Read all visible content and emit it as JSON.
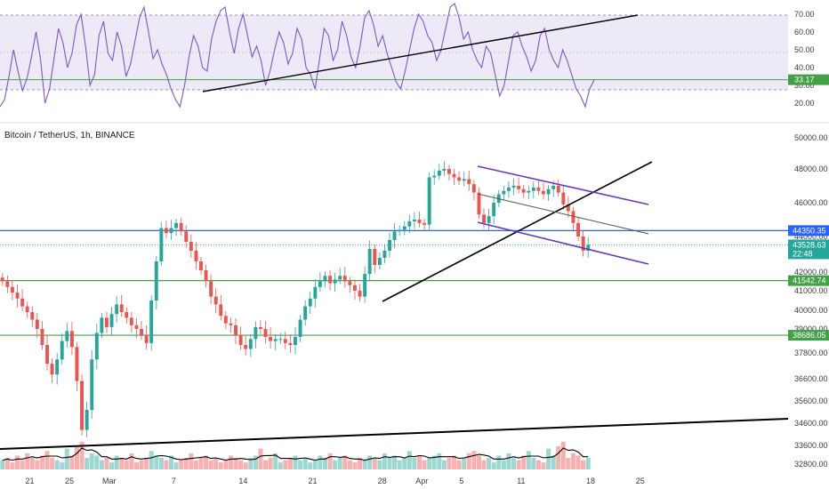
{
  "symbol_title": "Bitcoin / TetherUS, 1h, BINANCE",
  "chart_data": [
    {
      "type": "line",
      "panel": "rsi",
      "grid": false,
      "ylim": [
        10,
        78
      ],
      "y_ticks": [
        "70.00",
        "60.00",
        "50.00",
        "40.00",
        "30.00",
        "20.00"
      ],
      "band": [
        30,
        70
      ],
      "current_label": "33.17",
      "current_value": 33.17,
      "series": [
        {
          "x": [
            0,
            1,
            2,
            3,
            4,
            5,
            6,
            7,
            8,
            9,
            10,
            11,
            12,
            13,
            14,
            15,
            16,
            17,
            18,
            19,
            20,
            21,
            22,
            23,
            24,
            25,
            26,
            27,
            28,
            29,
            30,
            31,
            32,
            33,
            34,
            35,
            36,
            37,
            38,
            39,
            40,
            41,
            42,
            43,
            44,
            45,
            46,
            47,
            48,
            49,
            50,
            51,
            52,
            53,
            54,
            55,
            56,
            57,
            58,
            59,
            60,
            61,
            62,
            63,
            64,
            65,
            66,
            67,
            68,
            69,
            70,
            71,
            72,
            73,
            74,
            75,
            76,
            77,
            78,
            79,
            80,
            81,
            82,
            83,
            84,
            85,
            86,
            87,
            88,
            89,
            90,
            91,
            92,
            93,
            94,
            95,
            96,
            97,
            98,
            99,
            100,
            101,
            102,
            103,
            104,
            105,
            106,
            107,
            108,
            109,
            110,
            111,
            112,
            113,
            114,
            115,
            116,
            117,
            118,
            119,
            120,
            121,
            122,
            123,
            124,
            125,
            126,
            127,
            128,
            129,
            130,
            131,
            132
          ],
          "values": [
            18,
            22,
            35,
            50,
            38,
            27,
            34,
            46,
            60,
            45,
            20,
            28,
            45,
            62,
            54,
            40,
            48,
            64,
            70,
            52,
            30,
            36,
            58,
            66,
            48,
            44,
            60,
            52,
            35,
            42,
            55,
            68,
            74,
            60,
            45,
            50,
            42,
            36,
            28,
            22,
            18,
            30,
            46,
            58,
            52,
            40,
            38,
            56,
            66,
            72,
            74,
            60,
            48,
            62,
            70,
            58,
            46,
            52,
            44,
            30,
            38,
            50,
            60,
            54,
            42,
            48,
            62,
            56,
            40,
            36,
            28,
            45,
            62,
            58,
            44,
            50,
            66,
            58,
            46,
            40,
            52,
            68,
            72,
            64,
            52,
            58,
            48,
            40,
            32,
            28,
            38,
            50,
            62,
            70,
            66,
            58,
            54,
            44,
            50,
            62,
            74,
            76,
            68,
            56,
            60,
            50,
            44,
            40,
            52,
            48,
            36,
            24,
            30,
            44,
            58,
            60,
            52,
            46,
            38,
            44,
            58,
            62,
            50,
            44,
            40,
            50,
            44,
            36,
            28,
            24,
            18,
            28,
            33
          ]
        }
      ]
    },
    {
      "type": "candlestick",
      "panel": "price",
      "grid": false,
      "ylim": [
        32500,
        50600
      ],
      "y_ticks": [
        "50000.00",
        "48000.00",
        "46000.00",
        "44000.00",
        "42000.00",
        "41000.00",
        "40000.00",
        "39000.00",
        "37800.00",
        "36600.00",
        "35600.00",
        "34600.00",
        "33600.00",
        "32800.00"
      ],
      "x_tick_labels": [
        "21",
        "25",
        "Mar",
        "7",
        "14",
        "21",
        "28",
        "Apr",
        "5",
        "11",
        "18",
        "25"
      ],
      "x_tick_bars": [
        6,
        14,
        22,
        35,
        49,
        63,
        77,
        85,
        93,
        105,
        119,
        129
      ],
      "price_labels": [
        {
          "text": "44350.35",
          "value": 44350.35,
          "color": "#2962ff"
        },
        {
          "text": "43528.63",
          "value": 43528.63,
          "color": "#26a69a",
          "sub": "22:48"
        },
        {
          "text": "41542.74",
          "value": 41542.74,
          "color": "#43a047"
        },
        {
          "text": "38686.05",
          "value": 38686.05,
          "color": "#43a047"
        }
      ],
      "horizontal_lines": [
        {
          "value": 44350.35,
          "color": "#2962ff"
        },
        {
          "value": 41542.74,
          "color": "#43a047"
        },
        {
          "value": 38686.05,
          "color": "#43a047"
        }
      ],
      "last_price": 43528.63,
      "bars_shown": 97,
      "closes": [
        41500,
        41200,
        40900,
        40600,
        40200,
        39900,
        39500,
        39000,
        38200,
        37300,
        36800,
        37500,
        38400,
        38900,
        38100,
        36500,
        34300,
        35200,
        37500,
        38800,
        39600,
        39100,
        39800,
        40300,
        39900,
        39600,
        39200,
        39000,
        38700,
        38300,
        40500,
        42600,
        44500,
        44200,
        44500,
        44800,
        44300,
        43700,
        43200,
        42600,
        42100,
        41500,
        40700,
        40300,
        39700,
        39300,
        39200,
        38700,
        38200,
        38000,
        38500,
        39100,
        39000,
        38600,
        38400,
        38500,
        38500,
        38300,
        38200,
        38600,
        39500,
        40200,
        40600,
        41200,
        41500,
        41800,
        41400,
        41600,
        41800,
        41500,
        41300,
        41000,
        40700,
        41900,
        43300,
        42400,
        42800,
        43200,
        43800,
        44300,
        44400,
        44600,
        44900,
        45000,
        44800,
        44700,
        47500,
        47600,
        47900,
        48000,
        47700,
        47500,
        47300,
        47400,
        47100,
        46600,
        45300
      ],
      "tail_closes": [
        44800,
        45200,
        46000,
        46500,
        46700,
        46900,
        47000,
        46800,
        46600,
        46700,
        46900,
        46700,
        46500,
        46800,
        47000,
        46600,
        45900,
        45500,
        44800,
        44000,
        43200,
        43528.63
      ],
      "volumes": [
        4,
        5,
        3,
        6,
        4,
        7,
        5,
        4,
        6,
        8,
        5,
        4,
        3,
        9,
        6,
        10,
        12,
        5,
        7,
        6,
        4,
        5,
        3,
        6,
        5,
        4,
        7,
        3,
        4,
        5,
        8,
        6,
        5,
        4,
        6,
        3,
        4,
        5,
        7,
        4,
        5,
        6,
        4,
        5,
        3,
        4,
        6,
        5,
        4,
        3,
        5,
        6,
        9,
        4,
        5,
        7,
        3,
        4,
        5,
        6,
        4,
        5,
        3,
        4,
        6,
        5,
        7,
        4,
        5,
        6,
        4,
        3,
        5,
        4,
        6,
        5,
        4,
        7,
        5,
        6,
        4,
        5,
        8,
        5,
        6,
        4,
        5,
        6,
        7,
        4,
        5,
        6,
        4,
        5,
        7,
        8,
        6
      ]
    }
  ]
}
